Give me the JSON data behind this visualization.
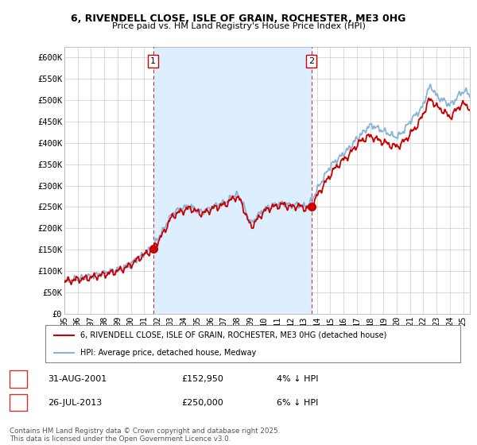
{
  "title_line1": "6, RIVENDELL CLOSE, ISLE OF GRAIN, ROCHESTER, ME3 0HG",
  "title_line2": "Price paid vs. HM Land Registry's House Price Index (HPI)",
  "ylim": [
    0,
    625000
  ],
  "yticks": [
    0,
    50000,
    100000,
    150000,
    200000,
    250000,
    300000,
    350000,
    400000,
    450000,
    500000,
    550000,
    600000
  ],
  "ytick_labels": [
    "£0",
    "£50K",
    "£100K",
    "£150K",
    "£200K",
    "£250K",
    "£300K",
    "£350K",
    "£400K",
    "£450K",
    "£500K",
    "£550K",
    "£600K"
  ],
  "fig_bg_color": "#ffffff",
  "plot_bg_color": "#ffffff",
  "grid_color": "#cccccc",
  "red_color": "#cc0000",
  "blue_color": "#88b4d8",
  "shade_color": "#ddeeff",
  "marker1_year": 2001.67,
  "marker1_value": 152950,
  "marker2_year": 2013.58,
  "marker2_value": 250000,
  "legend_line1": "6, RIVENDELL CLOSE, ISLE OF GRAIN, ROCHESTER, ME3 0HG (detached house)",
  "legend_line2": "HPI: Average price, detached house, Medway",
  "footer": "Contains HM Land Registry data © Crown copyright and database right 2025.\nThis data is licensed under the Open Government Licence v3.0.",
  "xstart": 1995.0,
  "xend": 2025.5
}
